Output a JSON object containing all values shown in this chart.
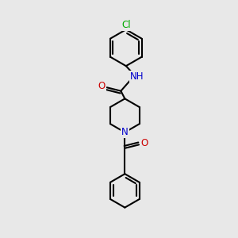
{
  "bg_color": "#e8e8e8",
  "atom_colors": {
    "C": "#000000",
    "N": "#0000cc",
    "O": "#cc0000",
    "Cl": "#00aa00",
    "H": "#777777"
  },
  "bond_color": "#000000",
  "bond_width": 1.5,
  "figsize": [
    3.0,
    3.0
  ],
  "dpi": 100,
  "xlim": [
    0,
    10
  ],
  "ylim": [
    0,
    10
  ]
}
